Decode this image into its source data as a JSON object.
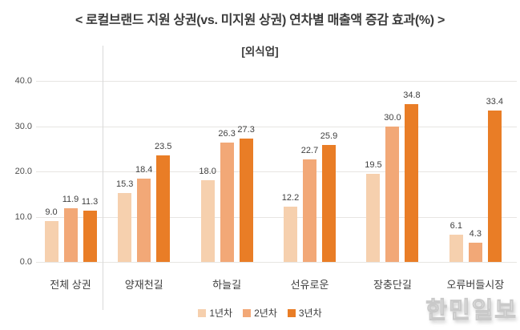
{
  "title": "< 로컬브랜드 지원 상권(vs. 미지원 상권) 연차별 매출액 증감 효과(%) >",
  "subtitle": "[외식업]",
  "watermark": "한민일보",
  "colors": {
    "series1": "#f6d0ae",
    "series2": "#f2a877",
    "series3": "#e97d26",
    "gridline": "#e7e5e2",
    "separator": "#d9d9d9",
    "text": "#3c3c3c"
  },
  "chart_data": {
    "type": "bar",
    "title": "< 로컬브랜드 지원 상권(vs. 미지원 상권) 연차별 매출액 증감 효과(%) >",
    "subtitle": "[외식업]",
    "categories": [
      "전체 상권",
      "양재천길",
      "하늘길",
      "선유로운",
      "장충단길",
      "오류버들시장"
    ],
    "series": [
      {
        "name": "1년차",
        "color": "#f6d0ae",
        "values": [
          9.0,
          15.3,
          18.0,
          12.2,
          19.5,
          6.1
        ]
      },
      {
        "name": "2년차",
        "color": "#f2a877",
        "values": [
          11.9,
          18.4,
          26.3,
          22.7,
          30.0,
          4.3
        ]
      },
      {
        "name": "3년차",
        "color": "#e97d26",
        "values": [
          11.3,
          23.5,
          27.3,
          25.9,
          34.8,
          33.4
        ]
      }
    ],
    "ylim": [
      0,
      40
    ],
    "yticks": [
      0,
      10,
      20,
      30,
      40
    ],
    "ytick_labels": [
      "0.0",
      "10.0",
      "20.0",
      "30.0",
      "40.0"
    ],
    "xlabel": "",
    "ylabel": "",
    "grid": true,
    "legend_position": "bottom",
    "value_labels": true,
    "separator_after_first_category": true
  }
}
